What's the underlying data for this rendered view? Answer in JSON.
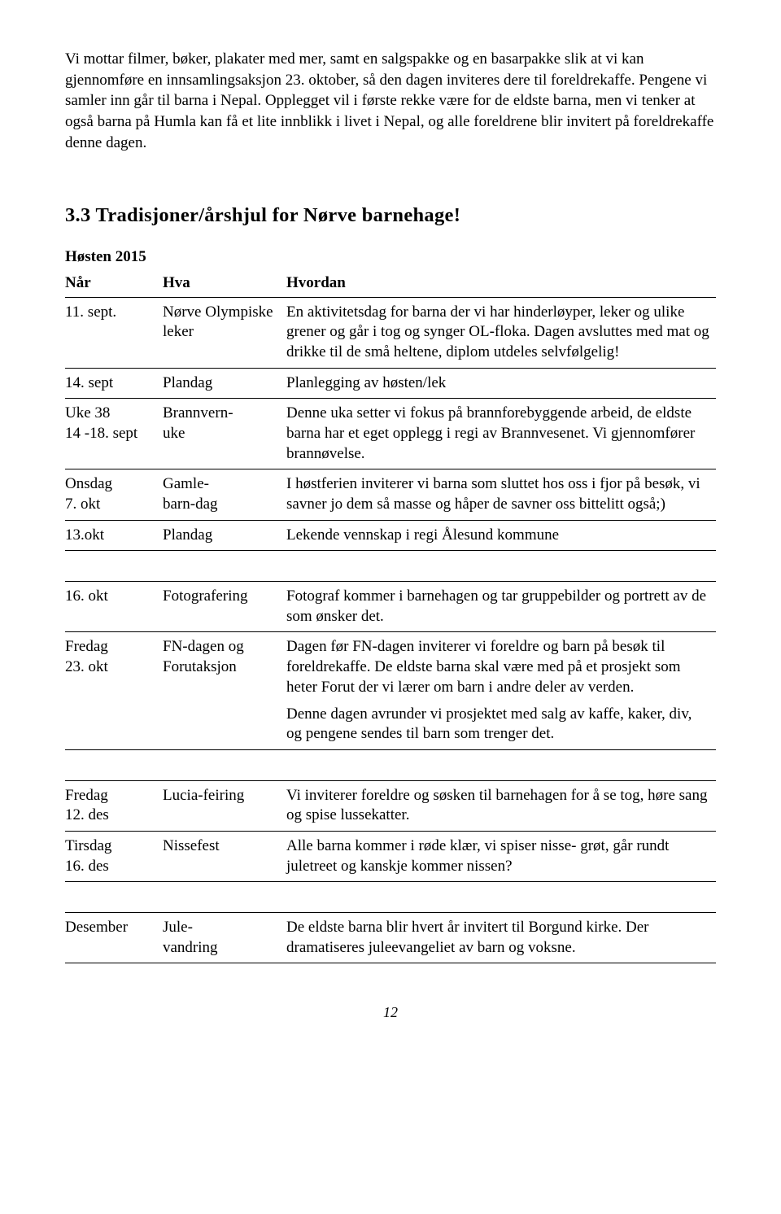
{
  "intro": "Vi mottar filmer, bøker, plakater med mer, samt en salgspakke og en basarpakke slik at vi kan gjennomføre en innsamlingsaksjon 23. oktober, så den dagen inviteres dere til foreldrekaffe. Pengene vi samler inn går til barna i Nepal. Opplegget vil i første rekke være for de eldste barna, men vi tenker at også barna på Humla kan få et lite innblikk i livet i Nepal, og alle foreldrene blir invitert på foreldrekaffe denne dagen.",
  "heading": "3.3 Tradisjoner/årshjul for Nørve barnehage!",
  "season": "Høsten 2015",
  "headers": {
    "nar": "Når",
    "hva": "Hva",
    "hvordan": "Hvordan"
  },
  "rows": [
    {
      "nar": "11. sept.",
      "hva": "Nørve Olympiske leker",
      "hvordan": "En aktivitetsdag for barna der vi har hinderløyper, leker og ulike grener og går i tog og synger OL-floka. Dagen avsluttes med mat og drikke til de små heltene, diplom utdeles selvfølgelig!"
    },
    {
      "nar": "14. sept",
      "hva": "Plandag",
      "hvordan": "Planlegging av høsten/lek"
    },
    {
      "nar": "Uke 38\n14 -18. sept",
      "hva": " Brannvern-\n uke",
      "hvordan": "Denne uka setter vi fokus på brannforebyggende arbeid, de eldste barna har et eget opplegg i regi av Brannvesenet. Vi gjennomfører brannøvelse."
    },
    {
      "nar": "Onsdag\n7. okt",
      "hva": "Gamle-\nbarn-dag",
      "hvordan": "I høstferien inviterer vi barna som sluttet hos oss i fjor på besøk, vi savner jo dem så masse og håper de savner oss bittelitt også;)"
    },
    {
      "nar": "13.okt",
      "hva": "Plandag",
      "hvordan": "Lekende vennskap i regi Ålesund kommune"
    },
    {
      "nar": "16. okt",
      "hva": "Fotografering",
      "hvordan": "Fotograf kommer i barnehagen og tar gruppebilder og portrett av de som ønsker det."
    },
    {
      "nar": "Fredag\n23. okt",
      "hva": "FN-dagen og Forutaksjon",
      "hvordan": "Dagen før FN-dagen inviterer vi foreldre og barn på besøk til foreldrekaffe. De eldste barna skal være med på et prosjekt som heter Forut der vi lærer om barn i andre deler av verden.\nDenne dagen avrunder vi prosjektet med salg av kaffe, kaker, div, og pengene sendes til barn som trenger det."
    },
    {
      "nar": "Fredag\n12. des",
      "hva": "Lucia-feiring",
      "hvordan": "Vi inviterer foreldre og søsken til barnehagen for å se tog, høre sang og spise lussekatter."
    },
    {
      "nar": "Tirsdag\n16. des",
      "hva": "Nissefest",
      "hvordan": "Alle barna kommer i røde klær, vi spiser nisse- grøt, går rundt juletreet og kanskje kommer nissen?"
    },
    {
      "nar": "Desember",
      "hva": "Jule-\nvandring",
      "hvordan": "De eldste barna blir hvert år invitert til Borgund kirke. Der dramatiseres juleevangeliet av barn og voksne."
    }
  ],
  "page_number": "12"
}
